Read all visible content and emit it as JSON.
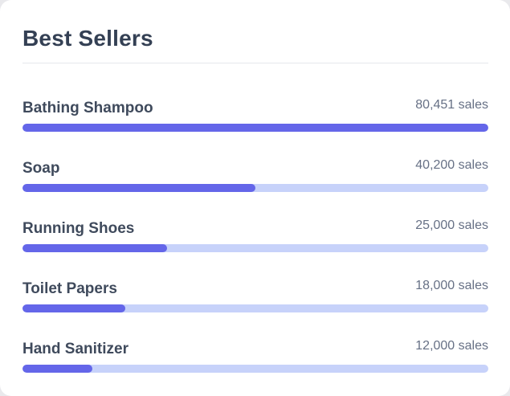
{
  "card": {
    "title": "Best Sellers",
    "items": [
      {
        "name": "Bathing Shampoo",
        "sales_label": "80,451 sales",
        "sales": 80451,
        "progress": 1.0
      },
      {
        "name": "Soap",
        "sales_label": "40,200 sales",
        "sales": 40200,
        "progress": 0.5
      },
      {
        "name": "Running Shoes",
        "sales_label": "25,000 sales",
        "sales": 25000,
        "progress": 0.31
      },
      {
        "name": "Toilet Papers",
        "sales_label": "18,000 sales",
        "sales": 18000,
        "progress": 0.22
      },
      {
        "name": "Hand Sanitizer",
        "sales_label": "12,000 sales",
        "sales": 12000,
        "progress": 0.15
      }
    ]
  },
  "colors": {
    "bar_fill": "#6466e9",
    "bar_track": "#c7d2fa",
    "title_text": "#344054",
    "label_text": "#3f4a5c",
    "sales_text": "#667085"
  }
}
